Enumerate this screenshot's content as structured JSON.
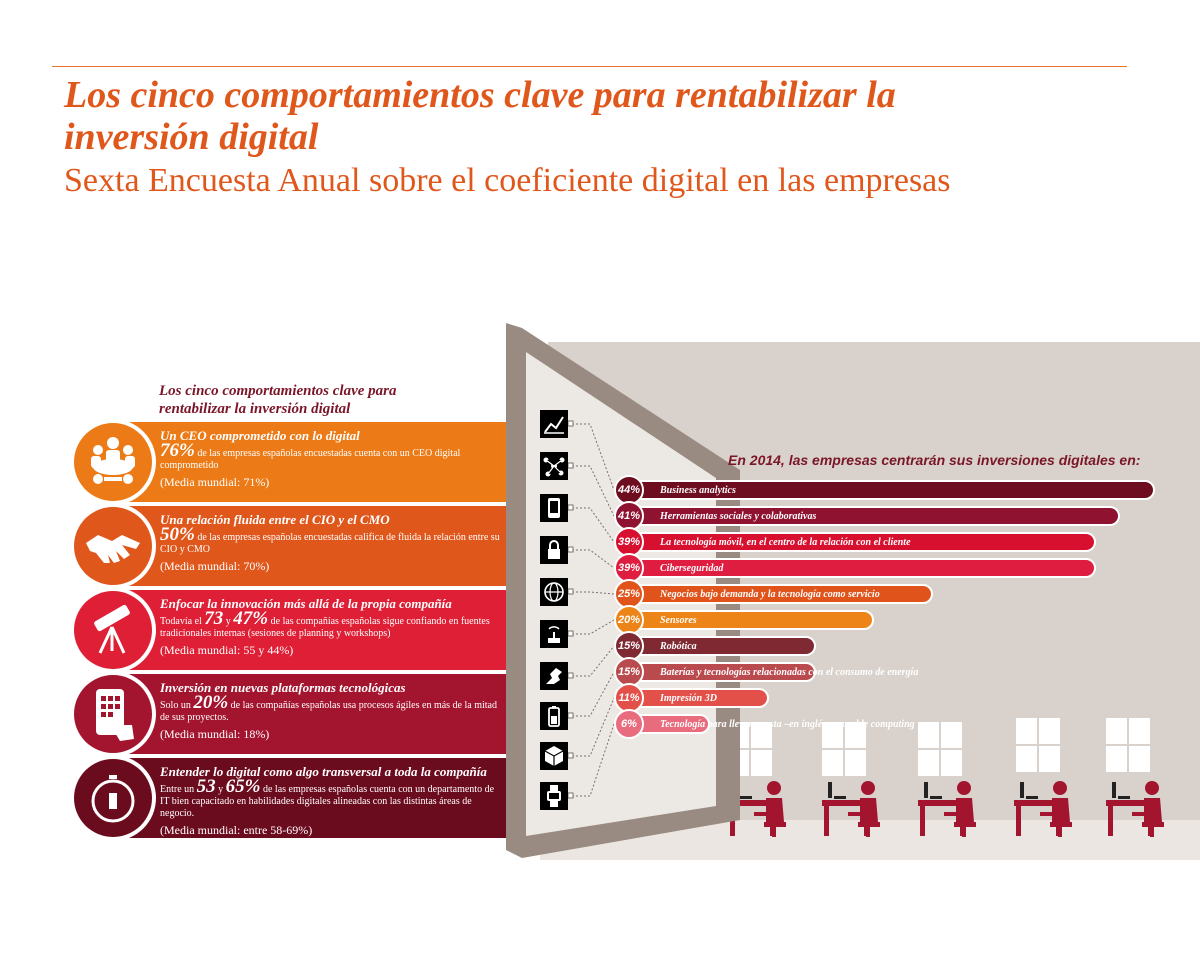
{
  "title": "Los cinco comportamientos clave para rentabilizar la inversión digital",
  "subtitle": "Sexta Encuesta Anual sobre el coeficiente digital en las empresas",
  "behaviors": {
    "title": "Los cinco comportamientos clave para rentabilizar la inversión digital",
    "items": [
      {
        "heading": "Un CEO comprometido con lo digital",
        "pre": "",
        "v1": "76%",
        "mid": "",
        "v2": "",
        "text": " de las empresas españolas encuestadas cuenta con un CEO digital comprometido",
        "media": "(Media mundial: 71%)",
        "color": "#ec7b17",
        "icon": "people-meeting-icon"
      },
      {
        "heading": "Una relación fluida entre el CIO y el CMO",
        "pre": "",
        "v1": "50%",
        "mid": "",
        "v2": "",
        "text": " de las empresas españolas encuestadas califica de fluida la relación entre su CIO y CMO",
        "media": "(Media mundial: 70%)",
        "color": "#e0571c",
        "icon": "handshake-icon"
      },
      {
        "heading": "Enfocar la innovación más allá de la propia compañía",
        "pre": "Todavía el ",
        "v1": "73",
        "mid": " y ",
        "v2": "47%",
        "text": " de las compañías españolas sigue confiando en fuentes tradicionales internas (sesiones de planning y workshops)",
        "media": "(Media mundial: 55 y 44%)",
        "color": "#de1f35",
        "icon": "telescope-icon"
      },
      {
        "heading": "Inversión en nuevas plataformas tecnológicas",
        "pre": "Solo un ",
        "v1": "20%",
        "mid": "",
        "v2": "",
        "text": " de las compañías españolas usa procesos ágiles en más de la mitad de sus proyectos.",
        "media": "(Media mundial: 18%)",
        "color": "#a3152f",
        "icon": "touch-phone-icon"
      },
      {
        "heading": "Entender lo digital como algo transversal a toda la compañía",
        "pre": "Entre un ",
        "v1": "53",
        "mid": " y ",
        "v2": "65%",
        "text": " de las empresas españolas cuenta con un departamento de IT bien capacitado en habilidades digitales alineadas con las distintas áreas de negocio.",
        "media": "(Media mundial: entre 58-69%)",
        "color": "#6b0b1e",
        "icon": "stopwatch-icon"
      }
    ]
  },
  "chart_data": {
    "type": "bar",
    "title": "En 2014, las empresas centrarán sus inversiones digitales en:",
    "categories": [
      "Business analytics",
      "Herramientas sociales y colaborativas",
      "La tecnología móvil, en el centro de la relación con el cliente",
      "Ciberseguridad",
      "Negocios bajo demanda y la tecnología como servicio",
      "Sensores",
      "Robótica",
      "Baterías y tecnologías relacionadas con el consumo de energía",
      "Impresión 3D",
      "Tecnología para llevar puesta –en inglés,  wearable computing"
    ],
    "labels": [
      "44%",
      "41%",
      "39%",
      "39%",
      "25%",
      "20%",
      "15%",
      "15%",
      "11%",
      "6%"
    ],
    "values": [
      44,
      41,
      39,
      39,
      25,
      20,
      15,
      15,
      11,
      6
    ],
    "colors": [
      "#6e0c20",
      "#8f1230",
      "#d8102f",
      "#de1d40",
      "#e0541c",
      "#ec8417",
      "#7f2a33",
      "#b94b4f",
      "#e3504a",
      "#e96c7e"
    ],
    "icons": [
      "line-chart-icon",
      "network-icon",
      "mobile-device-icon",
      "padlock-icon",
      "globe-icon",
      "sensor-icon",
      "robot-arm-icon",
      "battery-icon",
      "cube-icon",
      "wearable-watch-icon"
    ]
  }
}
